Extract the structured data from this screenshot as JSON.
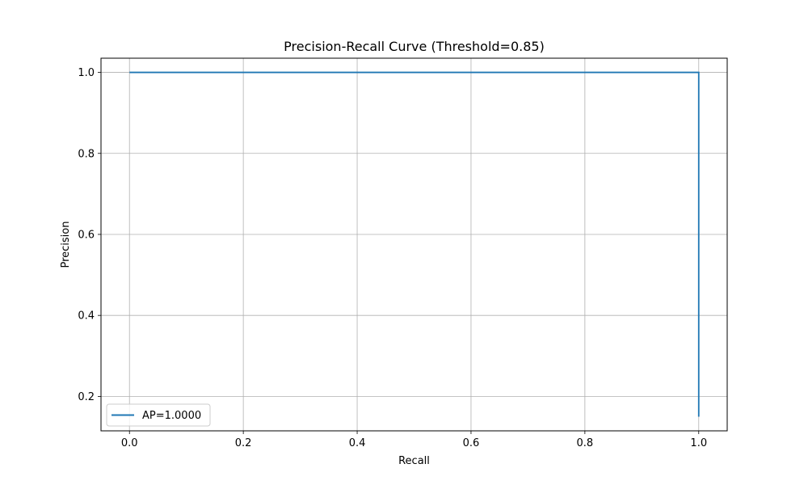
{
  "chart_data": {
    "type": "line",
    "title": "Precision-Recall Curve (Threshold=0.85)",
    "xlabel": "Recall",
    "ylabel": "Precision",
    "xlim": [
      -0.05,
      1.05
    ],
    "ylim": [
      0.115,
      1.035
    ],
    "xticks": [
      0.0,
      0.2,
      0.4,
      0.6,
      0.8,
      1.0
    ],
    "xtick_labels": [
      "0.0",
      "0.2",
      "0.4",
      "0.6",
      "0.8",
      "1.0"
    ],
    "yticks": [
      0.2,
      0.4,
      0.6,
      0.8,
      1.0
    ],
    "ytick_labels": [
      "0.2",
      "0.4",
      "0.6",
      "0.8",
      "1.0"
    ],
    "grid": true,
    "legend_position": "lower-left",
    "series": [
      {
        "name": "AP=1.0000",
        "color": "#1f77b4",
        "x": [
          0.0,
          1.0,
          1.0
        ],
        "y": [
          1.0,
          1.0,
          0.15
        ]
      }
    ]
  }
}
